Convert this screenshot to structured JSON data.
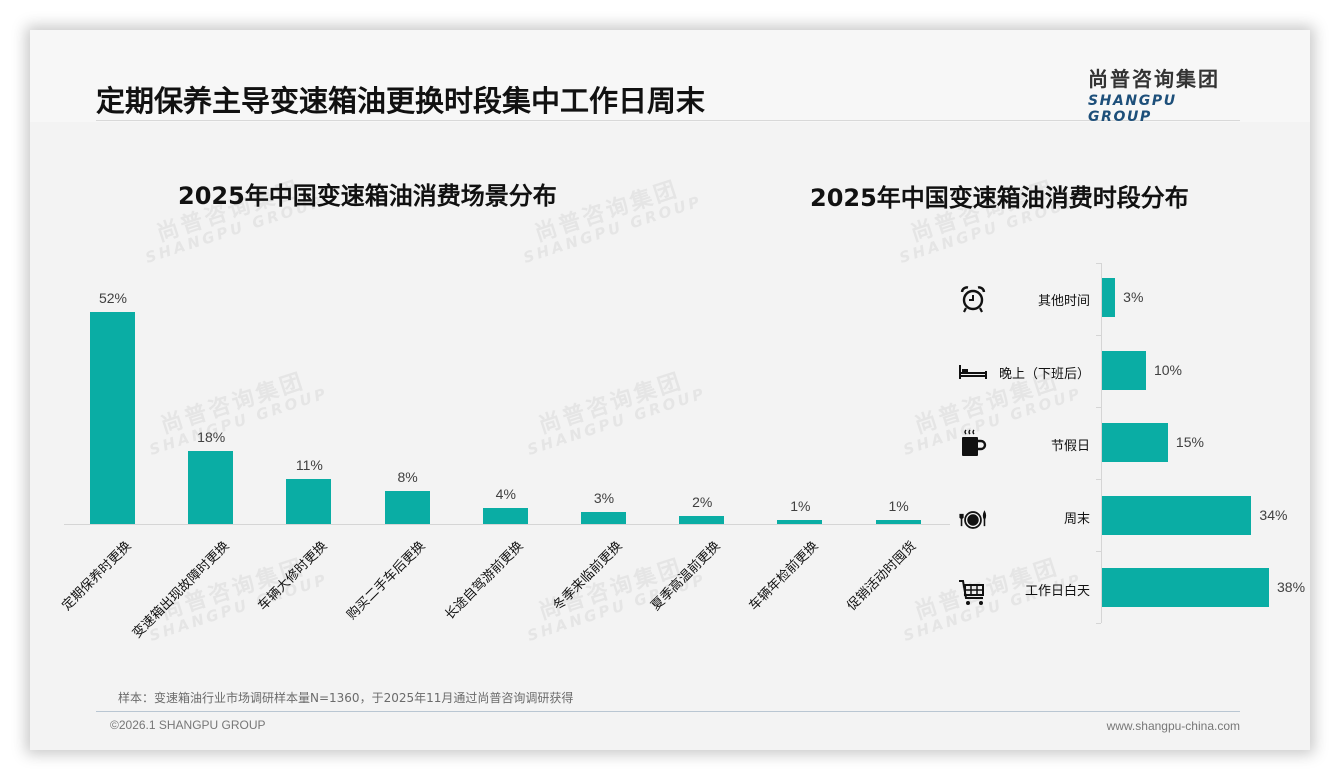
{
  "header": {
    "title": "定期保养主导变速箱油更换时段集中工作日周末",
    "logo_cn": "尚普咨询集团",
    "logo_en": "SHANGPU GROUP"
  },
  "watermark": {
    "cn": "尚普咨询集团",
    "en": "SHANGPU GROUP"
  },
  "colors": {
    "bar": "#0aada4",
    "background": "#f3f3f3",
    "logo_en": "#1d4f7a"
  },
  "chart_data": [
    {
      "type": "bar",
      "title": "2025年中国变速箱油消费场景分布",
      "categories": [
        "定期保养时更换",
        "变速箱出现故障时更换",
        "车辆大修时更换",
        "购买二手车后更换",
        "长途自驾游前更换",
        "冬季来临前更换",
        "夏季高温前更换",
        "车辆年检前更换",
        "促销活动时囤货"
      ],
      "values": [
        52,
        18,
        11,
        8,
        4,
        3,
        2,
        1,
        1
      ],
      "labels": [
        "52%",
        "18%",
        "11%",
        "8%",
        "4%",
        "3%",
        "2%",
        "1%",
        "1%"
      ],
      "unit": "%",
      "xlabel": "",
      "ylabel": "",
      "ylim": [
        0,
        55
      ],
      "grid": false,
      "legend": null
    },
    {
      "type": "bar",
      "orientation": "horizontal",
      "title": "2025年中国变速箱油消费时段分布",
      "categories": [
        "其他时间",
        "晚上（下班后）",
        "节假日",
        "周末",
        "工作日白天"
      ],
      "values": [
        3,
        10,
        15,
        34,
        38
      ],
      "labels": [
        "3%",
        "10%",
        "15%",
        "34%",
        "38%"
      ],
      "icons": [
        "alarm-clock-icon",
        "bed-icon",
        "hot-coffee-icon",
        "plate-cutlery-icon",
        "shopping-cart-icon"
      ],
      "unit": "%",
      "xlabel": "",
      "ylabel": "",
      "xlim": [
        0,
        40
      ],
      "grid": false,
      "legend": null
    }
  ],
  "footer": {
    "note": "样本：变速箱油行业市场调研样本量N=1360，于2025年11月通过尚普咨询调研获得",
    "copyright": "©2026.1 SHANGPU GROUP",
    "website": "www.shangpu-china.com"
  }
}
